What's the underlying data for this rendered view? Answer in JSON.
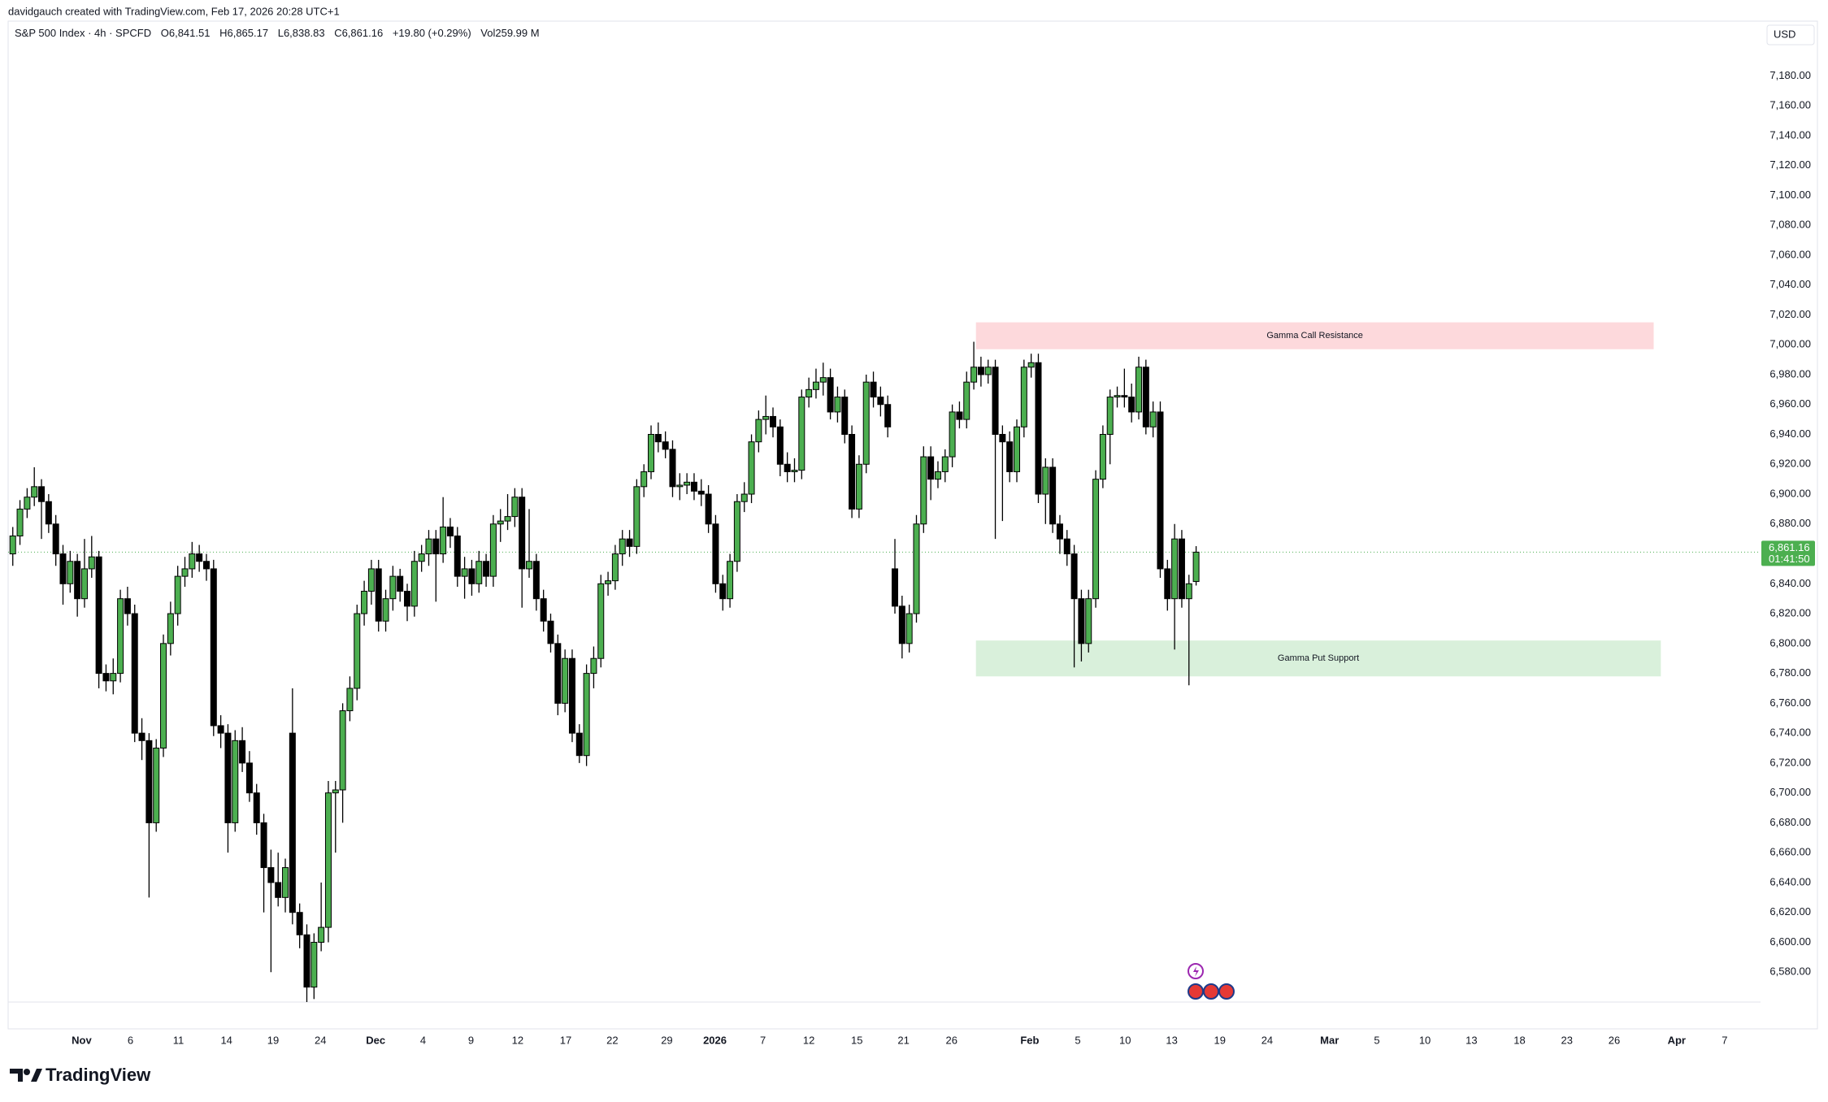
{
  "chart_data": {
    "type": "candlestick",
    "header": {
      "credit": "davidgauch created with TradingView.com, Feb 17, 2026 20:28 UTC+1",
      "symbol": "S&P 500 Index · 4h · SPCFD",
      "open": "O6,841.51",
      "high": "H6,865.17",
      "low": "L6,838.83",
      "close": "C6,861.16",
      "change": "+19.80 (+0.29%)",
      "volume": "Vol259.99 M"
    },
    "currency": "USD",
    "brand": "TradingView",
    "up_color": "#4caf50",
    "down_color": "#000000",
    "grid": false,
    "open": [
      6860,
      6872,
      6890,
      6898,
      6905,
      6895,
      6880,
      6860,
      6840,
      6855,
      6830,
      6850,
      6858,
      6780,
      6775,
      6780,
      6830,
      6820,
      6740,
      6735,
      6680,
      6730,
      6800,
      6820,
      6845,
      6850,
      6860,
      6855,
      6850,
      6745,
      6740,
      6680,
      6735,
      6720,
      6700,
      6680,
      6650,
      6640,
      6630,
      6740,
      6620,
      6605,
      6570,
      6600,
      6610,
      6700,
      6702,
      6755,
      6770,
      6820,
      6835,
      6850,
      6815,
      6830,
      6845,
      6835,
      6825,
      6855,
      6860,
      6870,
      6860,
      6878,
      6872,
      6845,
      6850,
      6840,
      6855,
      6845,
      6880,
      6882,
      6885,
      6898,
      6850,
      6855,
      6830,
      6815,
      6800,
      6760,
      6790,
      6740,
      6725,
      6780,
      6790,
      6840,
      6842,
      6860,
      6870,
      6865,
      6905,
      6915,
      6940,
      6935,
      6930,
      6905,
      6906,
      6908,
      6902,
      6900,
      6880,
      6840,
      6830,
      6855,
      6895,
      6900,
      6935,
      6950,
      6952,
      6945,
      6920,
      6915,
      6916,
      6965,
      6970,
      6975,
      6978,
      6955,
      6965,
      6940,
      6890,
      6920,
      6975,
      6965,
      6960,
      6850,
      6825,
      6800,
      6820,
      6880,
      6925,
      6910,
      6915,
      6925,
      6955,
      6950,
      6975,
      6985,
      6980,
      6985,
      6940,
      6935,
      6915,
      6945,
      6985,
      6988,
      6900,
      6918,
      6880,
      6870,
      6860,
      6830,
      6800,
      6830,
      6910,
      6940,
      6965,
      6966,
      6965,
      6955,
      6985,
      6945,
      6955,
      6850,
      6830,
      6870,
      6830,
      6841.51
    ],
    "high": [
      6878,
      6896,
      6904,
      6918,
      6910,
      6900,
      6886,
      6866,
      6862,
      6860,
      6870,
      6872,
      6862,
      6786,
      6790,
      6836,
      6838,
      6826,
      6750,
      6740,
      6736,
      6806,
      6828,
      6852,
      6858,
      6868,
      6866,
      6860,
      6856,
      6752,
      6746,
      6742,
      6744,
      6728,
      6706,
      6686,
      6662,
      6660,
      6656,
      6770,
      6626,
      6612,
      6606,
      6640,
      6708,
      6708,
      6760,
      6778,
      6826,
      6842,
      6856,
      6856,
      6836,
      6852,
      6850,
      6840,
      6862,
      6866,
      6876,
      6876,
      6898,
      6884,
      6878,
      6858,
      6856,
      6862,
      6860,
      6886,
      6890,
      6900,
      6904,
      6904,
      6890,
      6860,
      6836,
      6820,
      6806,
      6796,
      6796,
      6746,
      6786,
      6798,
      6846,
      6848,
      6866,
      6876,
      6876,
      6910,
      6920,
      6946,
      6948,
      6942,
      6936,
      6914,
      6914,
      6914,
      6910,
      6906,
      6886,
      6846,
      6860,
      6900,
      6908,
      6940,
      6956,
      6966,
      6958,
      6950,
      6928,
      6924,
      6970,
      6978,
      6984,
      6988,
      6984,
      6972,
      6970,
      6946,
      6926,
      6980,
      6982,
      6972,
      6966,
      6870,
      6832,
      6826,
      6886,
      6932,
      6932,
      6922,
      6930,
      6960,
      6962,
      6982,
      7002,
      6992,
      6990,
      6990,
      6946,
      6942,
      6950,
      6990,
      6994,
      6994,
      6924,
      6924,
      6886,
      6876,
      6866,
      6836,
      6836,
      6916,
      6946,
      6970,
      6972,
      6984,
      6974,
      6992,
      6990,
      6962,
      6962,
      6856,
      6880,
      6876,
      6846,
      6865.17
    ],
    "low": [
      6852,
      6866,
      6884,
      6892,
      6870,
      6874,
      6852,
      6826,
      6834,
      6818,
      6824,
      6844,
      6770,
      6768,
      6766,
      6774,
      6812,
      6734,
      6722,
      6630,
      6674,
      6724,
      6792,
      6812,
      6838,
      6844,
      6848,
      6842,
      6738,
      6730,
      6660,
      6674,
      6714,
      6694,
      6672,
      6620,
      6580,
      6624,
      6620,
      6612,
      6596,
      6560,
      6562,
      6594,
      6600,
      6660,
      6680,
      6748,
      6762,
      6812,
      6826,
      6808,
      6808,
      6822,
      6828,
      6815,
      6818,
      6848,
      6852,
      6828,
      6854,
      6864,
      6838,
      6830,
      6832,
      6834,
      6838,
      6838,
      6868,
      6876,
      6878,
      6824,
      6844,
      6822,
      6808,
      6794,
      6752,
      6754,
      6734,
      6720,
      6718,
      6770,
      6784,
      6832,
      6836,
      6852,
      6858,
      6860,
      6898,
      6910,
      6928,
      6924,
      6898,
      6896,
      6900,
      6896,
      6892,
      6874,
      6834,
      6822,
      6824,
      6848,
      6888,
      6894,
      6928,
      6940,
      6938,
      6912,
      6908,
      6908,
      6910,
      6958,
      6964,
      6966,
      6950,
      6948,
      6934,
      6884,
      6884,
      6914,
      6958,
      6952,
      6938,
      6820,
      6790,
      6794,
      6814,
      6874,
      6896,
      6904,
      6908,
      6918,
      6944,
      6944,
      6970,
      6972,
      6974,
      6870,
      6882,
      6908,
      6908,
      6938,
      6978,
      6894,
      6880,
      6874,
      6860,
      6852,
      6784,
      6788,
      6794,
      6824,
      6904,
      6920,
      6958,
      6958,
      6948,
      6950,
      6940,
      6938,
      6844,
      6822,
      6796,
      6824,
      6772,
      6838.83
    ],
    "close": [
      6872,
      6890,
      6898,
      6905,
      6895,
      6880,
      6860,
      6840,
      6855,
      6830,
      6850,
      6858,
      6780,
      6775,
      6780,
      6830,
      6820,
      6740,
      6735,
      6680,
      6730,
      6800,
      6820,
      6845,
      6850,
      6860,
      6855,
      6850,
      6745,
      6740,
      6680,
      6735,
      6720,
      6700,
      6680,
      6650,
      6640,
      6630,
      6650,
      6620,
      6605,
      6570,
      6600,
      6610,
      6700,
      6702,
      6755,
      6770,
      6820,
      6835,
      6850,
      6815,
      6830,
      6845,
      6835,
      6825,
      6855,
      6860,
      6870,
      6860,
      6878,
      6872,
      6845,
      6850,
      6840,
      6855,
      6845,
      6880,
      6882,
      6885,
      6898,
      6850,
      6855,
      6830,
      6815,
      6800,
      6760,
      6790,
      6740,
      6725,
      6780,
      6790,
      6840,
      6842,
      6860,
      6870,
      6865,
      6905,
      6915,
      6940,
      6935,
      6930,
      6905,
      6906,
      6908,
      6902,
      6900,
      6880,
      6840,
      6830,
      6855,
      6895,
      6900,
      6935,
      6950,
      6952,
      6945,
      6920,
      6915,
      6916,
      6965,
      6970,
      6975,
      6978,
      6955,
      6965,
      6940,
      6890,
      6920,
      6975,
      6965,
      6960,
      6945,
      6825,
      6800,
      6820,
      6880,
      6925,
      6910,
      6915,
      6925,
      6955,
      6950,
      6975,
      6985,
      6980,
      6985,
      6940,
      6935,
      6915,
      6945,
      6985,
      6988,
      6900,
      6918,
      6880,
      6870,
      6860,
      6830,
      6800,
      6830,
      6910,
      6940,
      6965,
      6966,
      6965,
      6955,
      6985,
      6945,
      6955,
      6850,
      6830,
      6870,
      6830,
      6840,
      6861.16
    ],
    "xlim": [
      -0.65,
      243.7
    ],
    "xticks": [
      {
        "value": 9.6,
        "label": "Nov"
      },
      {
        "value": 16.4,
        "label": "6"
      },
      {
        "value": 23.1,
        "label": "11"
      },
      {
        "value": 29.8,
        "label": "14"
      },
      {
        "value": 36.3,
        "label": "19"
      },
      {
        "value": 42.9,
        "label": "24"
      },
      {
        "value": 50.6,
        "label": "Dec"
      },
      {
        "value": 57.2,
        "label": "4"
      },
      {
        "value": 63.9,
        "label": "9"
      },
      {
        "value": 70.4,
        "label": "12"
      },
      {
        "value": 77.1,
        "label": "17"
      },
      {
        "value": 83.6,
        "label": "22"
      },
      {
        "value": 91.2,
        "label": "29"
      },
      {
        "value": 97.9,
        "label": "2026"
      },
      {
        "value": 104.6,
        "label": "7"
      },
      {
        "value": 111.0,
        "label": "12"
      },
      {
        "value": 117.7,
        "label": "15"
      },
      {
        "value": 124.2,
        "label": "21"
      },
      {
        "value": 130.9,
        "label": "26"
      },
      {
        "value": 141.8,
        "label": "Feb"
      },
      {
        "value": 148.5,
        "label": "5"
      },
      {
        "value": 155.1,
        "label": "10"
      },
      {
        "value": 161.6,
        "label": "13"
      },
      {
        "value": 168.3,
        "label": "19"
      },
      {
        "value": 174.9,
        "label": "24"
      },
      {
        "value": 183.6,
        "label": "Mar"
      },
      {
        "value": 190.2,
        "label": "5"
      },
      {
        "value": 196.9,
        "label": "10"
      },
      {
        "value": 203.4,
        "label": "13"
      },
      {
        "value": 210.1,
        "label": "18"
      },
      {
        "value": 216.7,
        "label": "23"
      },
      {
        "value": 223.3,
        "label": "26"
      },
      {
        "value": 232.0,
        "label": "Apr"
      },
      {
        "value": 238.7,
        "label": "7"
      }
    ],
    "ylim": [
      6560,
      7215
    ],
    "yticks": [
      {
        "value": 6580,
        "label": "6,580.00"
      },
      {
        "value": 6600,
        "label": "6,600.00"
      },
      {
        "value": 6620,
        "label": "6,620.00"
      },
      {
        "value": 6640,
        "label": "6,640.00"
      },
      {
        "value": 6660,
        "label": "6,660.00"
      },
      {
        "value": 6680,
        "label": "6,680.00"
      },
      {
        "value": 6700,
        "label": "6,700.00"
      },
      {
        "value": 6720,
        "label": "6,720.00"
      },
      {
        "value": 6740,
        "label": "6,740.00"
      },
      {
        "value": 6760,
        "label": "6,760.00"
      },
      {
        "value": 6780,
        "label": "6,780.00"
      },
      {
        "value": 6800,
        "label": "6,800.00"
      },
      {
        "value": 6820,
        "label": "6,820.00"
      },
      {
        "value": 6840,
        "label": "6,840.00"
      },
      {
        "value": 6880,
        "label": "6,880.00"
      },
      {
        "value": 6900,
        "label": "6,900.00"
      },
      {
        "value": 6920,
        "label": "6,920.00"
      },
      {
        "value": 6940,
        "label": "6,940.00"
      },
      {
        "value": 6960,
        "label": "6,960.00"
      },
      {
        "value": 6980,
        "label": "6,980.00"
      },
      {
        "value": 7000,
        "label": "7,000.00"
      },
      {
        "value": 7020,
        "label": "7,020.00"
      },
      {
        "value": 7040,
        "label": "7,040.00"
      },
      {
        "value": 7060,
        "label": "7,060.00"
      },
      {
        "value": 7080,
        "label": "7,080.00"
      },
      {
        "value": 7100,
        "label": "7,100.00"
      },
      {
        "value": 7120,
        "label": "7,120.00"
      },
      {
        "value": 7140,
        "label": "7,140.00"
      },
      {
        "value": 7160,
        "label": "7,160.00"
      },
      {
        "value": 7180,
        "label": "7,180.00"
      }
    ],
    "zones": [
      {
        "label": "Gamma Call Resistance",
        "low": 6997,
        "high": 7015,
        "x0": 134.3,
        "x1": 228.8,
        "color": "#fdd9dc"
      },
      {
        "label": "Gamma Put Support",
        "low": 6778,
        "high": 6802,
        "x0": 134.3,
        "x1": 229.8,
        "color": "#d9f0db"
      }
    ],
    "last_price": {
      "value": 6861.16,
      "label": "6,861.16",
      "countdown": "01:41:50",
      "color": "#4caf50"
    }
  }
}
